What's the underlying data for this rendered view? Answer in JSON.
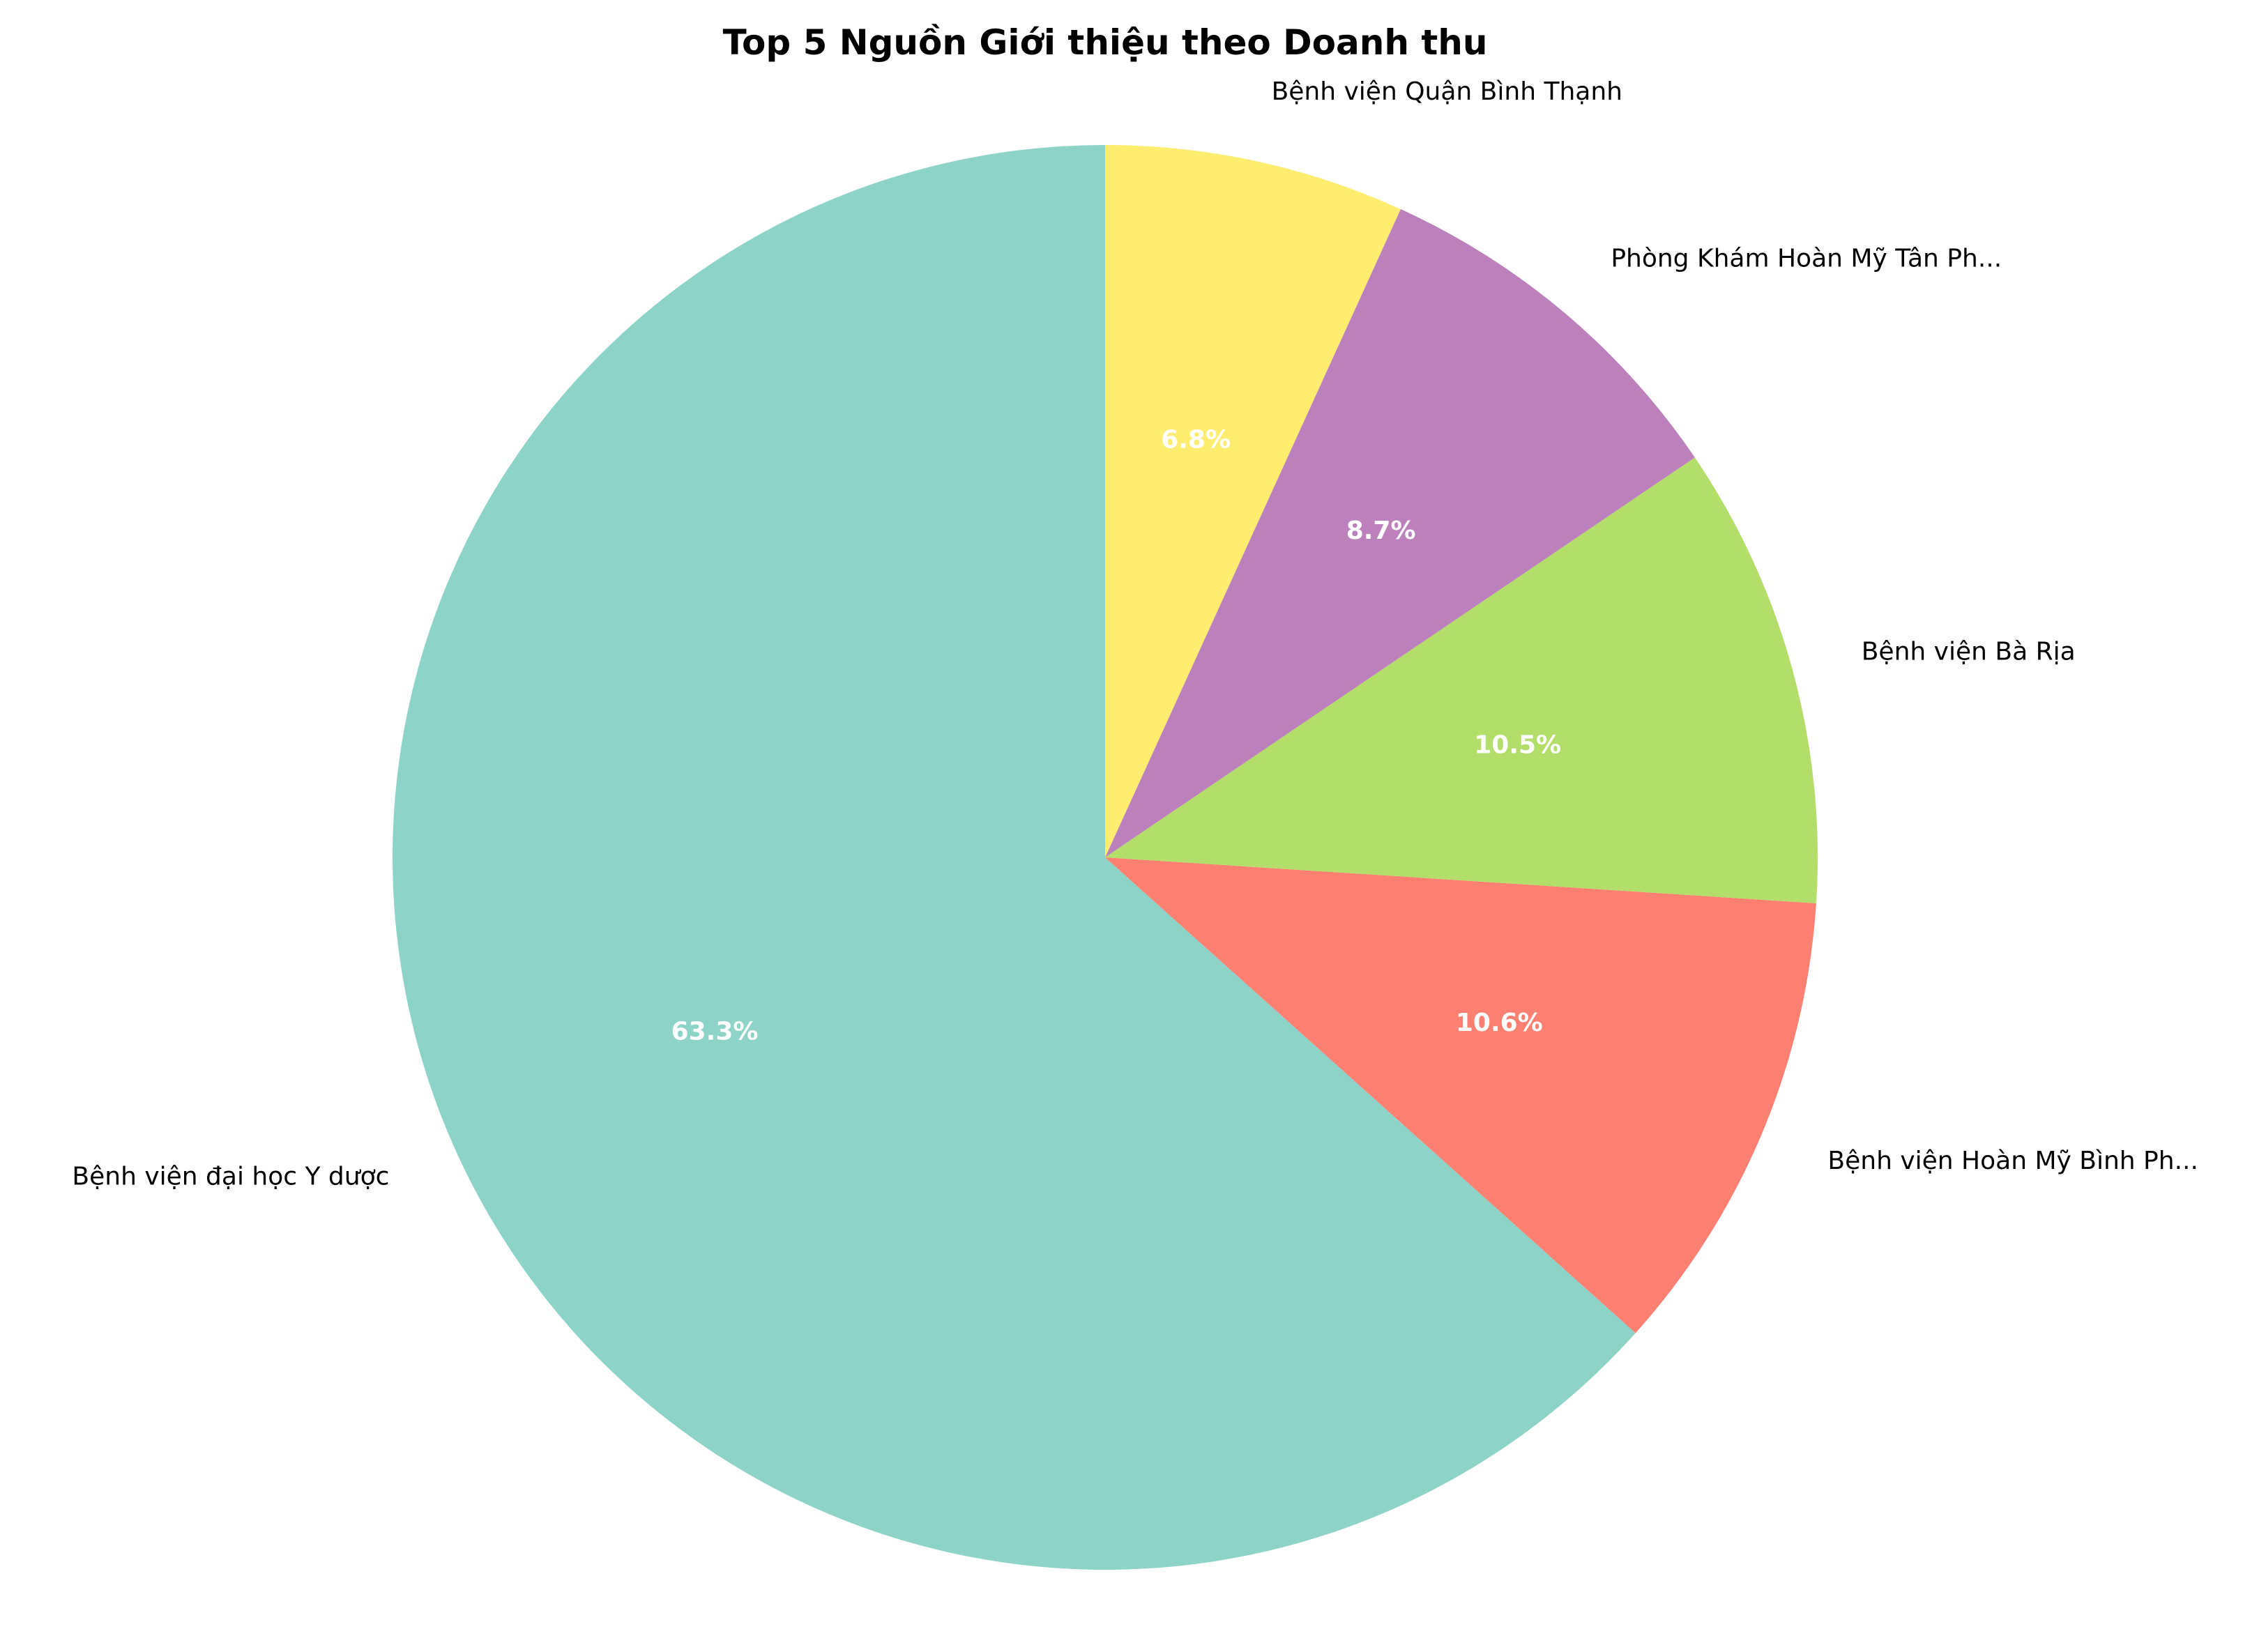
{
  "chart_data": {
    "type": "pie",
    "title": "Top 5 Nguồn Giới thiệu theo Doanh thu",
    "slices": [
      {
        "label": "Bệnh viện đại học Y dược",
        "value": 63.3,
        "pct_label": "63.3%",
        "color": "#8ed3c7"
      },
      {
        "label": "Bệnh viện Hoàn Mỹ Bình Ph...",
        "value": 10.6,
        "pct_label": "10.6%",
        "color": "#fb8072"
      },
      {
        "label": "Bệnh viện Bà Rịa",
        "value": 10.5,
        "pct_label": "10.5%",
        "color": "#b3de69"
      },
      {
        "label": "Phòng Khám Hoàn Mỹ Tân Ph...",
        "value": 8.7,
        "pct_label": "8.7%",
        "color": "#bc80bd"
      },
      {
        "label": "Bệnh viện Quận Bình Thạnh",
        "value": 6.8,
        "pct_label": "6.8%",
        "color": "#ffed6f"
      }
    ],
    "start_angle_deg": 90,
    "direction": "counterclockwise"
  }
}
